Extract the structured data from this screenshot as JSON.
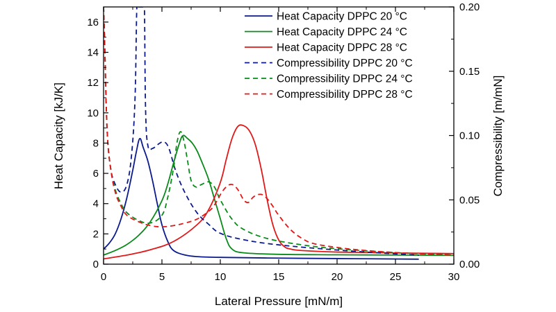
{
  "chart_data": {
    "type": "line",
    "title": "",
    "xlabel": "Lateral Pressure [mN/m]",
    "ylabel": "Heat Capacity [kJ/K]",
    "y2label": "Compressibility [m/mN]",
    "xlim": [
      0,
      30
    ],
    "ylim": [
      0,
      17
    ],
    "y2lim": [
      0,
      0.2
    ],
    "xticks": [
      "0",
      "5",
      "10",
      "15",
      "20",
      "25",
      "30"
    ],
    "yticks": [
      "0",
      "2",
      "4",
      "6",
      "8",
      "10",
      "12",
      "14",
      "16"
    ],
    "y2ticks": [
      "0.00",
      "0.05",
      "0.10",
      "0.15",
      "0.20"
    ],
    "legend_position": "top-right",
    "colors": {
      "c20": "#0a1a8c",
      "c24": "#0a8a1a",
      "c28": "#e01818"
    },
    "series": [
      {
        "name": "Heat Capacity DPPC 20 °C",
        "axis": "left",
        "style": "solid",
        "color_key": "c20",
        "x": [
          0,
          0.5,
          1,
          1.5,
          2,
          2.5,
          2.8,
          3.1,
          3.4,
          3.8,
          4.2,
          4.6,
          5.0,
          5.5,
          6.0,
          7,
          8,
          10,
          15,
          20,
          27
        ],
        "y": [
          1.0,
          1.4,
          2.0,
          3.0,
          4.4,
          6.2,
          7.4,
          8.3,
          7.7,
          6.8,
          5.5,
          4.0,
          2.6,
          1.5,
          0.9,
          0.6,
          0.5,
          0.45,
          0.4,
          0.37,
          0.33
        ]
      },
      {
        "name": "Heat Capacity DPPC 24 °C",
        "axis": "left",
        "style": "solid",
        "color_key": "c24",
        "x": [
          0,
          1,
          2,
          3,
          4,
          5,
          5.5,
          6.0,
          6.5,
          6.8,
          7.2,
          7.6,
          8.0,
          8.5,
          9.0,
          9.5,
          10.0,
          10.5,
          11,
          12,
          15,
          20,
          25,
          30
        ],
        "y": [
          0.6,
          0.9,
          1.3,
          1.9,
          2.8,
          4.2,
          5.3,
          6.7,
          8.0,
          8.5,
          8.3,
          8.0,
          7.5,
          6.6,
          5.6,
          4.3,
          3.0,
          1.7,
          1.0,
          0.75,
          0.65,
          0.62,
          0.6,
          0.58
        ]
      },
      {
        "name": "Heat Capacity DPPC 28 °C",
        "axis": "left",
        "style": "solid",
        "color_key": "c28",
        "x": [
          0,
          2,
          4,
          6,
          8,
          9,
          10,
          10.5,
          11,
          11.5,
          12,
          12.5,
          13,
          13.5,
          14,
          14.5,
          15,
          15.5,
          16,
          17,
          20,
          25,
          30
        ],
        "y": [
          0.35,
          0.6,
          0.95,
          1.5,
          2.6,
          3.6,
          5.4,
          6.9,
          8.3,
          9.1,
          9.15,
          8.8,
          7.9,
          6.3,
          4.3,
          2.6,
          1.6,
          1.15,
          1.0,
          0.9,
          0.8,
          0.74,
          0.7
        ]
      },
      {
        "name": "Compressibility DPPC 20 °C",
        "axis": "right",
        "style": "dashed",
        "color_key": "c20",
        "x": [
          0,
          0.1,
          0.3,
          0.6,
          1.0,
          1.5,
          2.0,
          2.4,
          2.7,
          2.85,
          3.0,
          3.2,
          3.4,
          3.5,
          3.6,
          3.8,
          4.2,
          4.8,
          5.2,
          5.6,
          6.2,
          7,
          8,
          9,
          10,
          12,
          15,
          20,
          25,
          27
        ],
        "y": [
          0.2,
          0.17,
          0.105,
          0.075,
          0.062,
          0.056,
          0.062,
          0.085,
          0.13,
          0.2,
          0.2,
          0.2,
          0.2,
          0.2,
          0.12,
          0.092,
          0.09,
          0.094,
          0.095,
          0.09,
          0.072,
          0.055,
          0.04,
          0.031,
          0.024,
          0.019,
          0.015,
          0.011,
          0.008,
          0.007
        ]
      },
      {
        "name": "Compressibility DPPC 24 °C",
        "axis": "right",
        "style": "dashed",
        "color_key": "c24",
        "x": [
          0,
          0.1,
          0.3,
          0.6,
          1.0,
          1.5,
          2,
          3,
          4,
          5,
          5.5,
          6.0,
          6.3,
          6.6,
          6.9,
          7.2,
          7.5,
          7.9,
          8.4,
          9.0,
          9.5,
          10.0,
          11,
          12,
          14,
          17,
          20,
          25,
          30
        ],
        "y": [
          0.2,
          0.17,
          0.105,
          0.075,
          0.058,
          0.047,
          0.04,
          0.034,
          0.032,
          0.038,
          0.052,
          0.075,
          0.095,
          0.103,
          0.095,
          0.08,
          0.065,
          0.06,
          0.062,
          0.064,
          0.06,
          0.05,
          0.035,
          0.027,
          0.02,
          0.015,
          0.012,
          0.009,
          0.007
        ]
      },
      {
        "name": "Compressibility DPPC 28 °C",
        "axis": "right",
        "style": "dashed",
        "color_key": "c28",
        "x": [
          0,
          0.1,
          0.3,
          0.6,
          1.0,
          1.5,
          2,
          3,
          4,
          5,
          6,
          7,
          8,
          9,
          9.5,
          10,
          10.5,
          11,
          11.5,
          12,
          12.4,
          12.8,
          13.2,
          13.6,
          14,
          14.5,
          15,
          16,
          17,
          18,
          20,
          22,
          25,
          30
        ],
        "y": [
          0.2,
          0.17,
          0.105,
          0.075,
          0.056,
          0.045,
          0.038,
          0.033,
          0.03,
          0.029,
          0.03,
          0.032,
          0.035,
          0.041,
          0.046,
          0.054,
          0.06,
          0.062,
          0.058,
          0.05,
          0.048,
          0.052,
          0.054,
          0.054,
          0.051,
          0.045,
          0.038,
          0.027,
          0.02,
          0.016,
          0.013,
          0.011,
          0.009,
          0.007
        ]
      }
    ]
  }
}
